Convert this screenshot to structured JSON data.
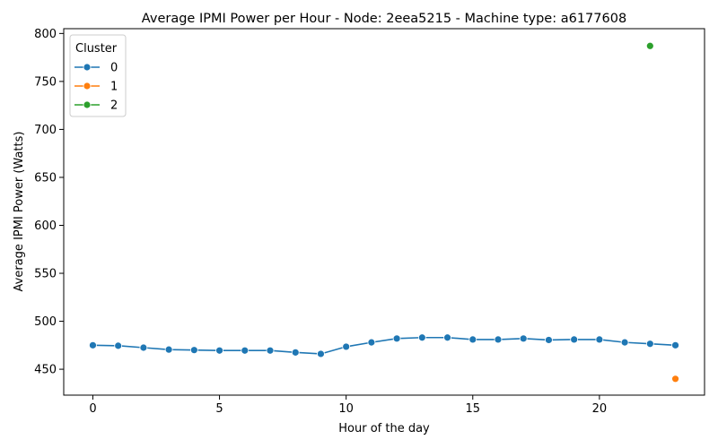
{
  "chart_data": {
    "type": "line",
    "title": "Average IPMI Power per Hour - Node: 2eea5215 - Machine type: a6177608",
    "xlabel": "Hour of the day",
    "ylabel": "Average IPMI Power (Watts)",
    "xlim": [
      -1.15,
      24.15
    ],
    "ylim": [
      423,
      805
    ],
    "x_ticks": [
      0,
      5,
      10,
      15,
      20
    ],
    "y_ticks": [
      450,
      500,
      550,
      600,
      650,
      700,
      750,
      800
    ],
    "grid": false,
    "legend": {
      "title": "Cluster",
      "placement": "top-left"
    },
    "series": [
      {
        "name": "0",
        "color": "#1f77b4",
        "x": [
          0,
          1,
          2,
          3,
          4,
          5,
          6,
          7,
          8,
          9,
          10,
          11,
          12,
          13,
          14,
          15,
          16,
          17,
          18,
          19,
          20,
          21,
          22,
          23
        ],
        "y": [
          475,
          474.5,
          472.5,
          470.5,
          470,
          469.5,
          469.5,
          469.5,
          467.5,
          466,
          473.5,
          478,
          482,
          483,
          483,
          481,
          481,
          482,
          480.5,
          481,
          481,
          478,
          476.5,
          475
        ]
      },
      {
        "name": "1",
        "color": "#ff7f0e",
        "x": [
          23
        ],
        "y": [
          440
        ]
      },
      {
        "name": "2",
        "color": "#2ca02c",
        "x": [
          22
        ],
        "y": [
          787
        ]
      }
    ]
  }
}
